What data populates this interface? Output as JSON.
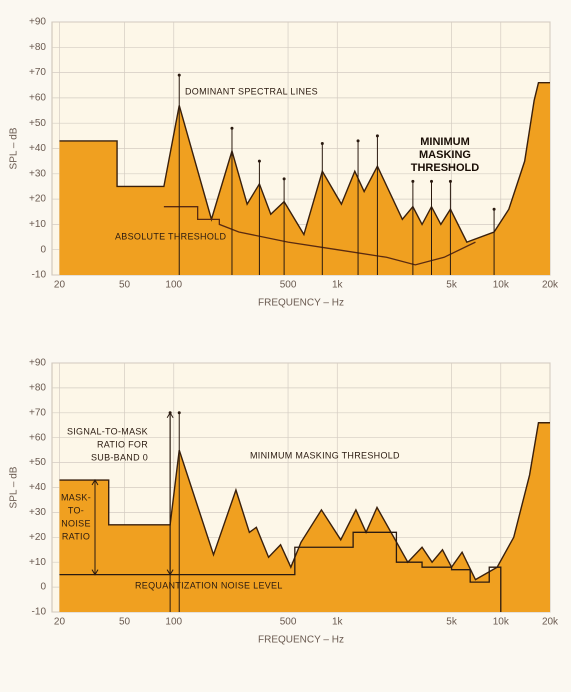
{
  "chart_data": [
    {
      "type": "area",
      "log_x": true,
      "grid": true,
      "y_label": "SPL – dB",
      "x_label": "FREQUENCY – Hz",
      "xlim": [
        18,
        20000
      ],
      "ylim": [
        -10,
        90
      ],
      "xticks": [
        20,
        50,
        100,
        500,
        {
          "value": 1000,
          "label": "1k"
        },
        {
          "value": 5000,
          "label": "5k"
        },
        {
          "value": 10000,
          "label": "10k"
        },
        {
          "value": 20000,
          "label": "20k"
        }
      ],
      "yticks": [
        {
          "value": 90,
          "label": "+90"
        },
        {
          "value": 80,
          "label": "+80"
        },
        {
          "value": 70,
          "label": "+70"
        },
        {
          "value": 60,
          "label": "+60"
        },
        {
          "value": 50,
          "label": "+50"
        },
        {
          "value": 40,
          "label": "+40"
        },
        {
          "value": 30,
          "label": "+30"
        },
        {
          "value": 20,
          "label": "+20"
        },
        {
          "value": 10,
          "label": "+10"
        },
        0,
        -10
      ],
      "series": [
        {
          "style": "filled",
          "color": "#f0a020",
          "x": [
            20,
            45,
            45,
            87,
            108,
            170,
            227,
            281,
            334,
            392,
            473,
            625,
            810,
            1060,
            1280,
            1460,
            1760,
            2500,
            2900,
            3300,
            3770,
            4300,
            4920,
            6200,
            9100,
            11200,
            14000,
            16000,
            17000,
            20000
          ],
          "values": [
            43,
            43,
            25,
            25,
            57,
            12,
            39,
            18,
            26,
            14,
            19,
            6,
            31,
            18,
            31,
            23,
            33,
            12,
            17,
            10,
            17,
            10,
            16,
            3,
            7,
            16,
            35,
            59,
            66,
            66
          ]
        },
        {
          "style": "line",
          "color": "#5a2a10",
          "x": [
            87,
            140,
            140,
            190,
            190,
            250,
            500,
            1000,
            2000,
            3000,
            4500,
            7000
          ],
          "values": [
            17,
            17,
            12,
            12,
            10,
            7,
            3,
            0,
            -3,
            -6,
            -3,
            3
          ]
        },
        {
          "style": "stems",
          "color": "#2a1a10",
          "x": [
            108,
            227,
            334,
            473,
            810,
            1340,
            1760,
            2900,
            3770,
            4920,
            9100
          ],
          "values": [
            69,
            48,
            35,
            28,
            42,
            43,
            45,
            27,
            27,
            27,
            16
          ]
        }
      ],
      "annotations": [
        {
          "text": [
            "DOMINANT SPECTRAL LINES"
          ]
        },
        {
          "text": [
            "MINIMUM",
            "MASKING",
            "THRESHOLD"
          ]
        },
        {
          "text": [
            "ABSOLUTE THRESHOLD"
          ]
        }
      ]
    },
    {
      "type": "area",
      "log_x": true,
      "grid": true,
      "y_label": "SPL – dB",
      "x_label": "FREQUENCY – Hz",
      "xlim": [
        18,
        20000
      ],
      "ylim": [
        -10,
        90
      ],
      "xticks": [
        20,
        50,
        100,
        500,
        {
          "value": 1000,
          "label": "1k"
        },
        {
          "value": 5000,
          "label": "5k"
        },
        {
          "value": 10000,
          "label": "10k"
        },
        {
          "value": 20000,
          "label": "20k"
        }
      ],
      "yticks": [
        {
          "value": 90,
          "label": "+90"
        },
        {
          "value": 80,
          "label": "+80"
        },
        {
          "value": 70,
          "label": "+70"
        },
        {
          "value": 60,
          "label": "+60"
        },
        {
          "value": 50,
          "label": "+50"
        },
        {
          "value": 40,
          "label": "+40"
        },
        {
          "value": 30,
          "label": "+30"
        },
        {
          "value": 20,
          "label": "+20"
        },
        {
          "value": 10,
          "label": "+10"
        },
        0,
        -10
      ],
      "series": [
        {
          "style": "filled",
          "color": "#f0a020",
          "x": [
            20,
            40,
            40,
            95,
            108,
            175,
            240,
            290,
            320,
            380,
            450,
            520,
            600,
            800,
            1050,
            1300,
            1500,
            1750,
            2700,
            3300,
            3800,
            4400,
            5000,
            5800,
            7000,
            9500,
            12000,
            15000,
            17000,
            20000
          ],
          "values": [
            43,
            43,
            25,
            25,
            55,
            13,
            39,
            22,
            24,
            12,
            17,
            8,
            18,
            31,
            19,
            31,
            22,
            32,
            10,
            16,
            10,
            15,
            8,
            14,
            3,
            8,
            20,
            45,
            66,
            66
          ]
        },
        {
          "style": "line",
          "color": "#2a1a10",
          "x": [
            20,
            550,
            550,
            1250,
            1250,
            2300,
            2300,
            3300,
            3300,
            5000,
            5000,
            6500,
            6500,
            8500,
            8500,
            10000,
            10000
          ],
          "values": [
            5,
            5,
            16,
            16,
            22,
            22,
            10,
            10,
            8,
            8,
            7,
            7,
            2,
            2,
            8,
            8,
            -10
          ]
        },
        {
          "style": "stems",
          "color": "#2a1a10",
          "x": [
            95,
            108
          ],
          "values": [
            70,
            70
          ]
        }
      ],
      "annotations": [
        {
          "text": [
            "SIGNAL-TO-MASK",
            "RATIO FOR",
            "SUB-BAND 0"
          ]
        },
        {
          "text": [
            "MINIMUM MASKING THRESHOLD"
          ]
        },
        {
          "text": [
            "MASK-",
            "TO-",
            "NOISE",
            "RATIO"
          ]
        },
        {
          "text": [
            "REQUANTIZATION NOISE LEVEL"
          ]
        }
      ]
    }
  ]
}
